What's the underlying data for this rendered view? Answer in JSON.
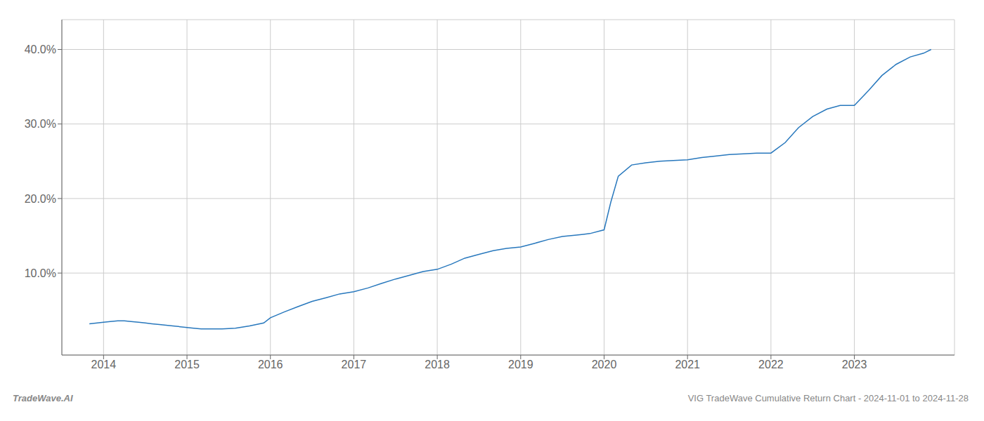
{
  "chart_data": {
    "type": "line",
    "title": "VIG TradeWave Cumulative Return Chart - 2024-11-01 to 2024-11-28",
    "annotations": [
      "TradeWave.AI"
    ],
    "x": [
      2013.83,
      2014.0,
      2014.08,
      2014.17,
      2014.25,
      2014.33,
      2014.42,
      2014.5,
      2014.58,
      2014.67,
      2014.75,
      2014.83,
      2014.92,
      2015.0,
      2015.08,
      2015.17,
      2015.25,
      2015.42,
      2015.58,
      2015.75,
      2015.92,
      2016.0,
      2016.17,
      2016.33,
      2016.5,
      2016.67,
      2016.83,
      2017.0,
      2017.17,
      2017.33,
      2017.5,
      2017.67,
      2017.83,
      2018.0,
      2018.17,
      2018.33,
      2018.5,
      2018.67,
      2018.83,
      2019.0,
      2019.17,
      2019.33,
      2019.5,
      2019.67,
      2019.75,
      2019.83,
      2020.0,
      2020.08,
      2020.17,
      2020.33,
      2020.5,
      2020.67,
      2020.83,
      2021.0,
      2021.17,
      2021.33,
      2021.5,
      2021.67,
      2021.83,
      2022.0,
      2022.17,
      2022.33,
      2022.5,
      2022.67,
      2022.83,
      2023.0,
      2023.17,
      2023.33,
      2023.5,
      2023.67,
      2023.83,
      2023.92
    ],
    "values": [
      3.2,
      3.4,
      3.5,
      3.6,
      3.6,
      3.5,
      3.4,
      3.3,
      3.2,
      3.1,
      3.0,
      2.9,
      2.8,
      2.7,
      2.6,
      2.5,
      2.5,
      2.5,
      2.6,
      2.9,
      3.3,
      4.0,
      4.8,
      5.5,
      6.2,
      6.7,
      7.2,
      7.5,
      8.0,
      8.6,
      9.2,
      9.7,
      10.2,
      10.5,
      11.2,
      12.0,
      12.5,
      13.0,
      13.3,
      13.5,
      14.0,
      14.5,
      14.9,
      15.1,
      15.2,
      15.3,
      15.8,
      19.5,
      23.0,
      24.5,
      24.8,
      25.0,
      25.1,
      25.2,
      25.5,
      25.7,
      25.9,
      26.0,
      26.1,
      26.1,
      27.5,
      29.5,
      31.0,
      32.0,
      32.5,
      32.5,
      34.5,
      36.5,
      38.0,
      39.0,
      39.5,
      40.0
    ],
    "color": "#2878bd",
    "xlim": [
      2013.5,
      2024.2
    ],
    "ylim": [
      -1,
      44
    ],
    "xticks": [
      2014,
      2015,
      2016,
      2017,
      2018,
      2019,
      2020,
      2021,
      2022,
      2023
    ],
    "yticks": [
      {
        "value": 10.0,
        "label": "10.0%"
      },
      {
        "value": 20.0,
        "label": "20.0%"
      },
      {
        "value": 30.0,
        "label": "30.0%"
      },
      {
        "value": 40.0,
        "label": "40.0%"
      }
    ],
    "grid": true
  }
}
